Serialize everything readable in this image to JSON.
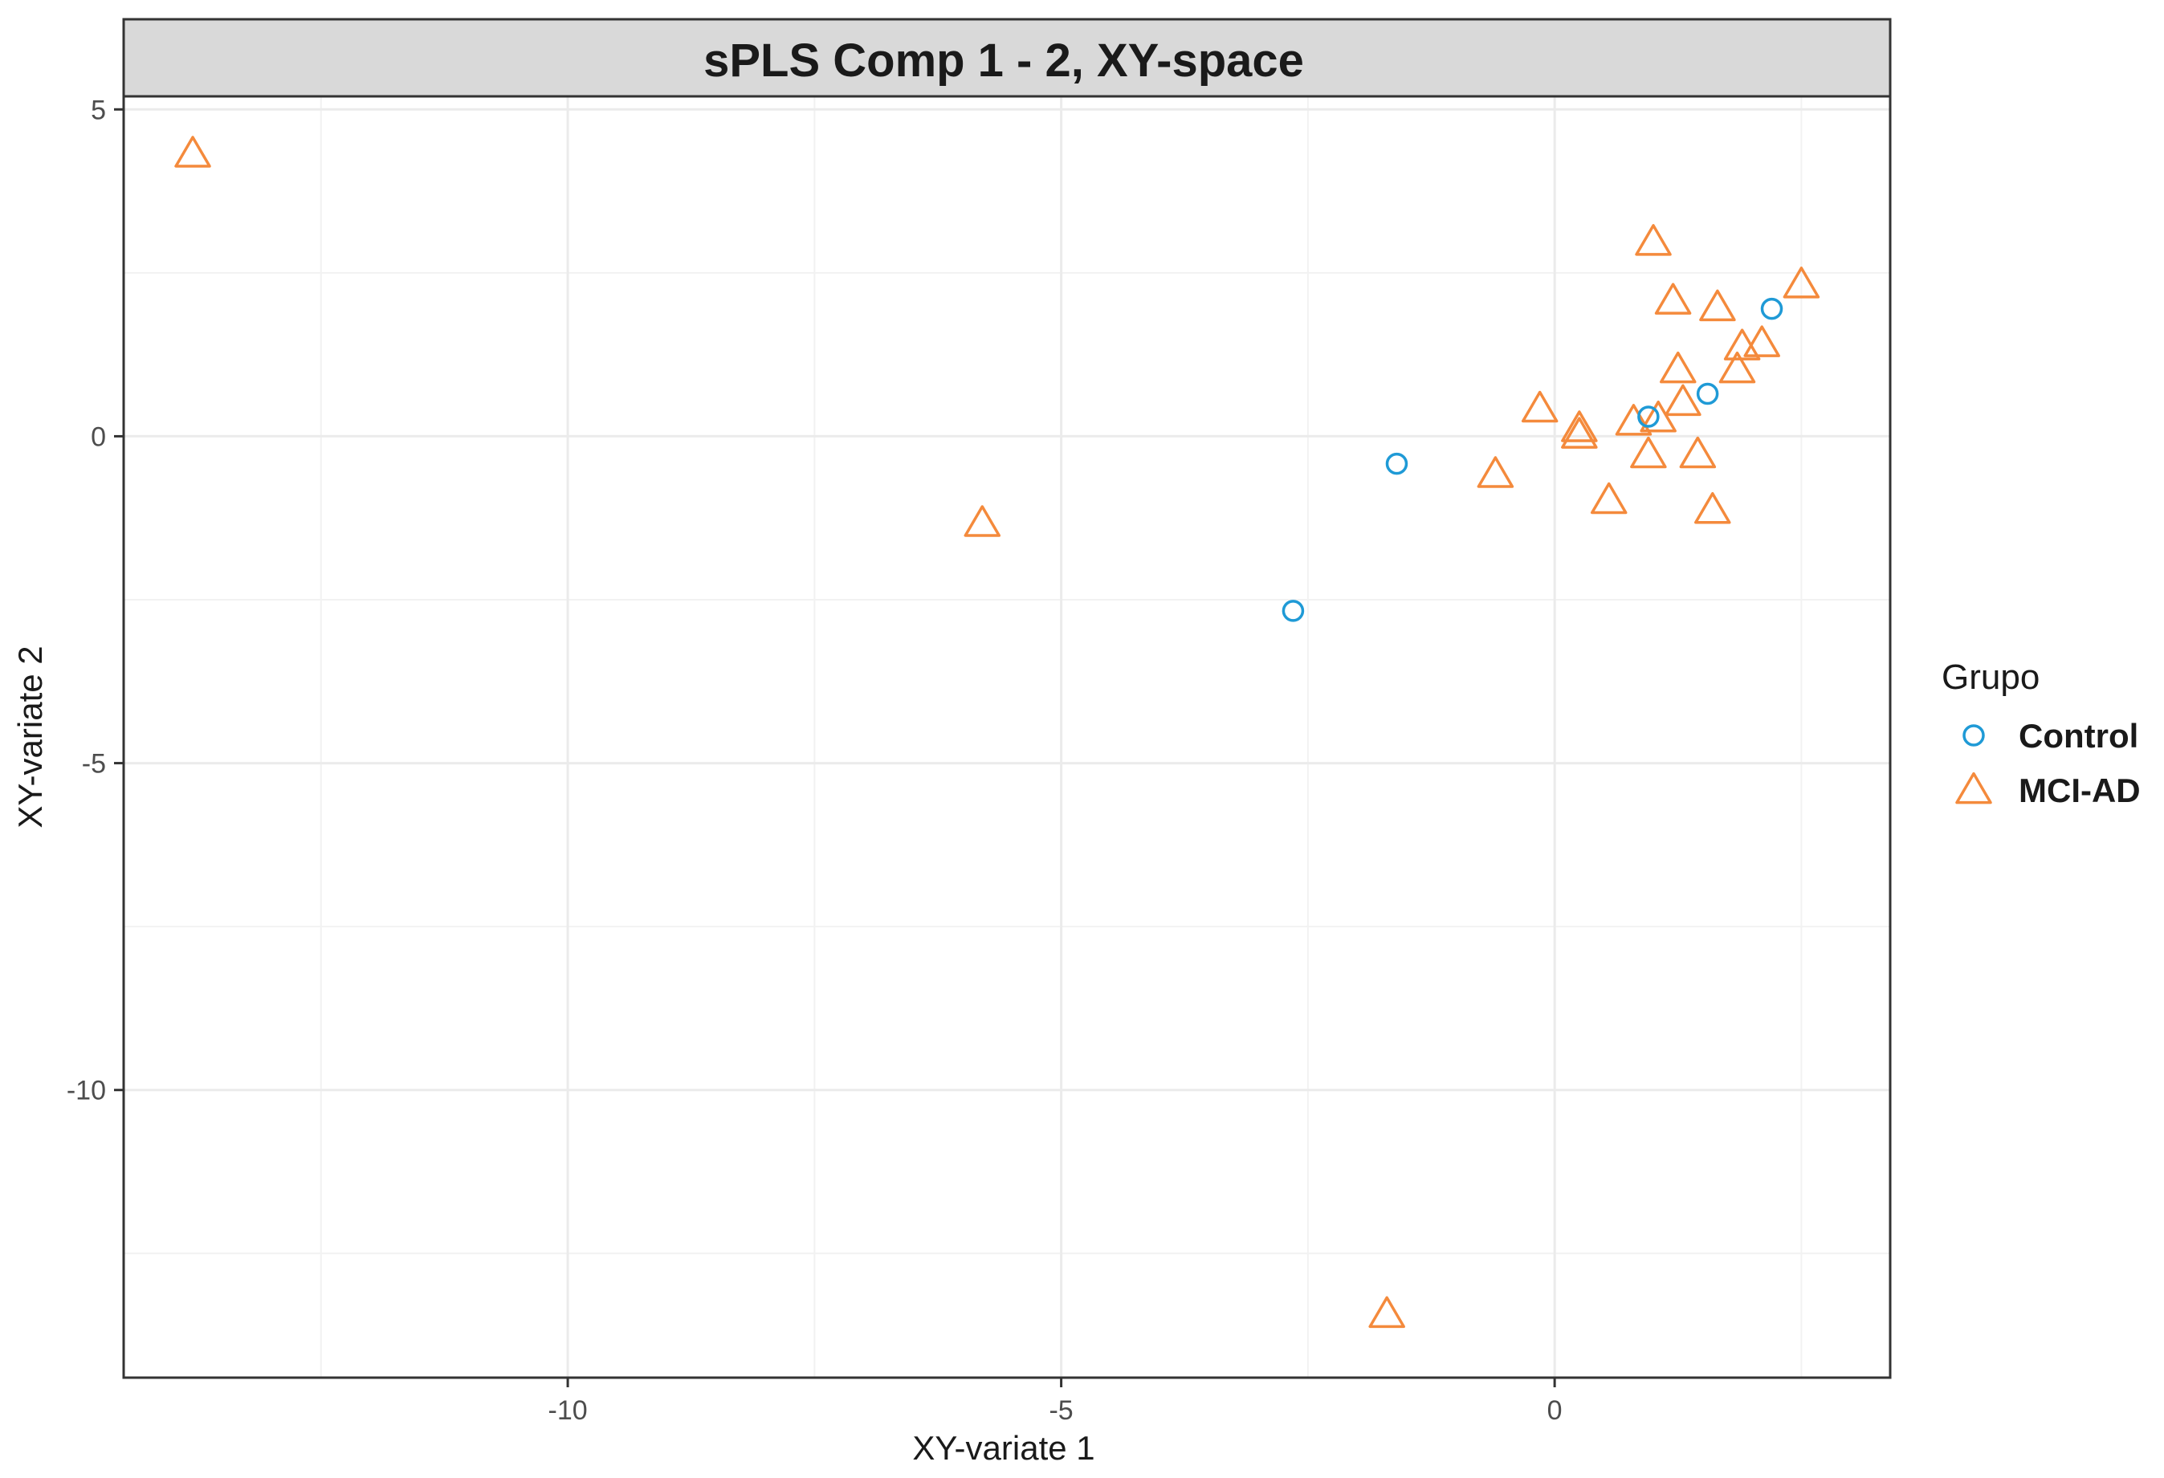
{
  "chart_data": {
    "type": "scatter",
    "title": "sPLS Comp 1 - 2, XY-space",
    "xlabel": "XY-variate 1",
    "ylabel": "XY-variate 2",
    "xlim": [
      -14.5,
      3.4
    ],
    "ylim": [
      -14.4,
      5.2
    ],
    "xticks": [
      -10,
      -5,
      0
    ],
    "yticks": [
      5,
      0,
      -5,
      -10
    ],
    "xtick_labels": [
      "-10",
      "-5",
      "0"
    ],
    "ytick_labels": [
      "5",
      "0",
      "-5",
      "-10"
    ],
    "x_minor_gridlines": [
      -12.5,
      -7.5,
      -2.5,
      2.5
    ],
    "y_minor_gridlines": [
      2.5,
      -2.5,
      -7.5,
      -12.5
    ],
    "grid": true,
    "legend": {
      "title": "Grupo",
      "placement": "right"
    },
    "series": [
      {
        "name": "Control",
        "marker": "circle",
        "color": "#1f9ad6",
        "points": [
          {
            "x": 2.2,
            "y": 1.95
          },
          {
            "x": 1.55,
            "y": 0.65
          },
          {
            "x": 0.95,
            "y": 0.3
          },
          {
            "x": -1.6,
            "y": -0.42
          },
          {
            "x": -2.65,
            "y": -2.67
          }
        ]
      },
      {
        "name": "MCI-AD",
        "marker": "triangle",
        "color": "#f48a3c",
        "points": [
          {
            "x": -13.8,
            "y": 4.3
          },
          {
            "x": -5.8,
            "y": -1.35
          },
          {
            "x": -1.7,
            "y": -13.45
          },
          {
            "x": -0.6,
            "y": -0.6
          },
          {
            "x": -0.15,
            "y": 0.4
          },
          {
            "x": 0.25,
            "y": 0.1
          },
          {
            "x": 0.25,
            "y": 0.0
          },
          {
            "x": 0.55,
            "y": -1.0
          },
          {
            "x": 0.8,
            "y": 0.2
          },
          {
            "x": 0.95,
            "y": -0.3
          },
          {
            "x": 1.0,
            "y": 2.95
          },
          {
            "x": 1.05,
            "y": 0.25
          },
          {
            "x": 1.2,
            "y": 2.05
          },
          {
            "x": 1.25,
            "y": 1.0
          },
          {
            "x": 1.3,
            "y": 0.5
          },
          {
            "x": 1.45,
            "y": -0.3
          },
          {
            "x": 1.6,
            "y": -1.15
          },
          {
            "x": 1.65,
            "y": 1.95
          },
          {
            "x": 1.85,
            "y": 1.0
          },
          {
            "x": 1.9,
            "y": 1.35
          },
          {
            "x": 2.1,
            "y": 1.4
          },
          {
            "x": 2.5,
            "y": 2.3
          }
        ]
      }
    ]
  }
}
